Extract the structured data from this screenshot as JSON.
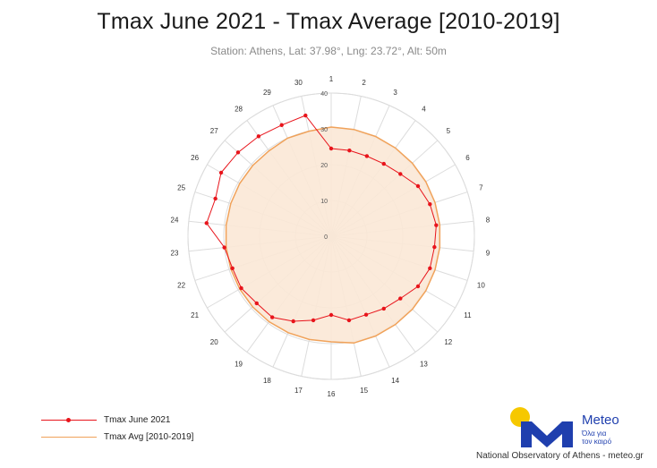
{
  "title": "Tmax June 2021 - Tmax Average [2010-2019]",
  "subtitle": "Station: Athens, Lat: 37.98°, Lng: 23.72°, Alt: 50m",
  "legend": {
    "series1": "Tmax June 2021",
    "series2": "Tmax Avg [2010-2019]"
  },
  "logo": {
    "brand": "Meteo",
    "tagline_line1": "Όλα για",
    "tagline_line2": "τον καιρό"
  },
  "credit": "National Observatory of Athens - meteo.gr",
  "colors": {
    "series1": "#e8141b",
    "series2": "#f0a25a",
    "series2_fill": "#fbe8d6",
    "grid": "#dcdcdc",
    "logo_blue": "#1f3fae",
    "logo_sun": "#f6c800"
  },
  "icons": [
    "sun-icon",
    "meteo-m-logo-icon"
  ],
  "chart_data": {
    "type": "radar",
    "categories": [
      "1",
      "2",
      "3",
      "4",
      "5",
      "6",
      "7",
      "8",
      "9",
      "10",
      "11",
      "12",
      "13",
      "14",
      "15",
      "16",
      "17",
      "18",
      "19",
      "20",
      "21",
      "22",
      "23",
      "24",
      "25",
      "26",
      "27",
      "28",
      "29",
      "30"
    ],
    "radial_ticks": [
      0,
      10,
      20,
      30,
      40
    ],
    "rlim": [
      0,
      40
    ],
    "grid": true,
    "legend_position": "bottom-left",
    "series": [
      {
        "name": "Tmax June 2021",
        "values": [
          24.5,
          24.5,
          24.5,
          25,
          26,
          28,
          29,
          29.5,
          29,
          29,
          28,
          26,
          25,
          24,
          24,
          22,
          24,
          26,
          28,
          28,
          29,
          29,
          30,
          35,
          34,
          35.5,
          35,
          34.5,
          34,
          34.5
        ],
        "style": "line-markers"
      },
      {
        "name": "Tmax Avg [2010-2019]",
        "values": [
          30.5,
          30.5,
          30.5,
          30.5,
          30.5,
          30.5,
          30.5,
          30.5,
          30.5,
          30.5,
          30.5,
          30.5,
          30.5,
          30.5,
          30.5,
          29.5,
          29.5,
          29.5,
          29.5,
          29.5,
          29.5,
          29.5,
          29.5,
          29.5,
          29.5,
          29.5,
          29.5,
          29.5,
          30,
          30
        ],
        "style": "area"
      }
    ]
  }
}
